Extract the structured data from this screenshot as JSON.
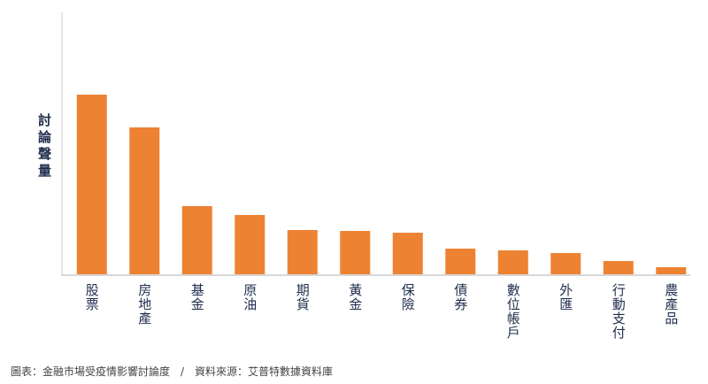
{
  "chart_data": {
    "type": "bar",
    "ylabel": "討論聲量",
    "categories": [
      "股票",
      "房地產",
      "基金",
      "原油",
      "期貨",
      "黃金",
      "保險",
      "債券",
      "數位帳戶",
      "外匯",
      "行動支付",
      "農產品"
    ],
    "values": [
      203,
      166,
      77,
      67,
      50,
      49,
      47,
      29,
      27,
      24,
      15,
      8
    ],
    "color": "#ee8233",
    "ylim": [
      0,
      296
    ],
    "caption": "圖表：金融市場受疫情影響討論度　/　資料來源：艾普特數據資料庫"
  }
}
